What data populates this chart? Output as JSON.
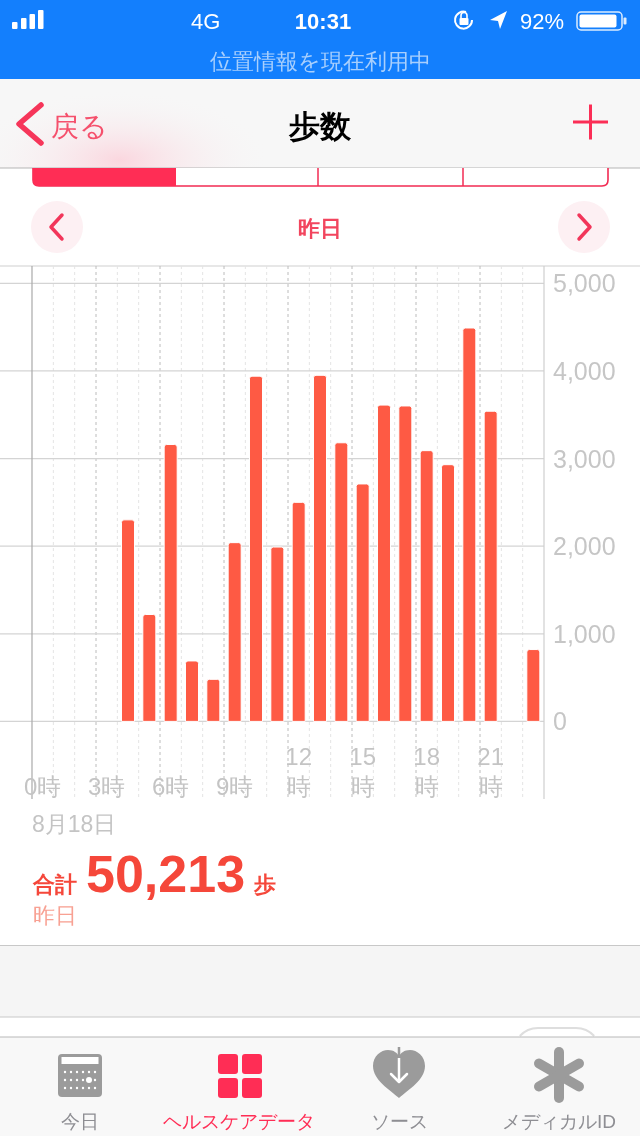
{
  "chart_data": {
    "type": "bar",
    "title": "歩数",
    "subtitle": "昨日",
    "categories": [
      "0時",
      null,
      null,
      "3時",
      null,
      null,
      "6時",
      null,
      null,
      "9時",
      null,
      null,
      "12時",
      null,
      null,
      "15時",
      null,
      null,
      "18時",
      null,
      null,
      "21時",
      null,
      null
    ],
    "values": [
      0,
      0,
      0,
      0,
      2300,
      1220,
      3160,
      690,
      480,
      2040,
      3940,
      1990,
      2500,
      3950,
      3180,
      2710,
      3610,
      3600,
      3090,
      2930,
      4490,
      3540,
      0,
      820
    ],
    "color": "#fe5a44",
    "ylim": [
      0,
      5000
    ],
    "yticks": [
      0,
      {
        "value": 1000,
        "label": "1,000"
      },
      {
        "value": 2000,
        "label": "2,000"
      },
      {
        "value": 3000,
        "label": "3,000"
      },
      {
        "value": 4000,
        "label": "4,000"
      },
      {
        "value": 5000,
        "label": "5,000"
      }
    ],
    "grid": true,
    "annotations": [
      "4G",
      "10:31",
      "92%",
      "位置情報を現在利用中",
      "戻る",
      "8月18日",
      "合計",
      "50,213",
      "歩",
      "昨日",
      "今日",
      "ヘルスケアデータ",
      "ソース",
      "メディカルID"
    ]
  }
}
